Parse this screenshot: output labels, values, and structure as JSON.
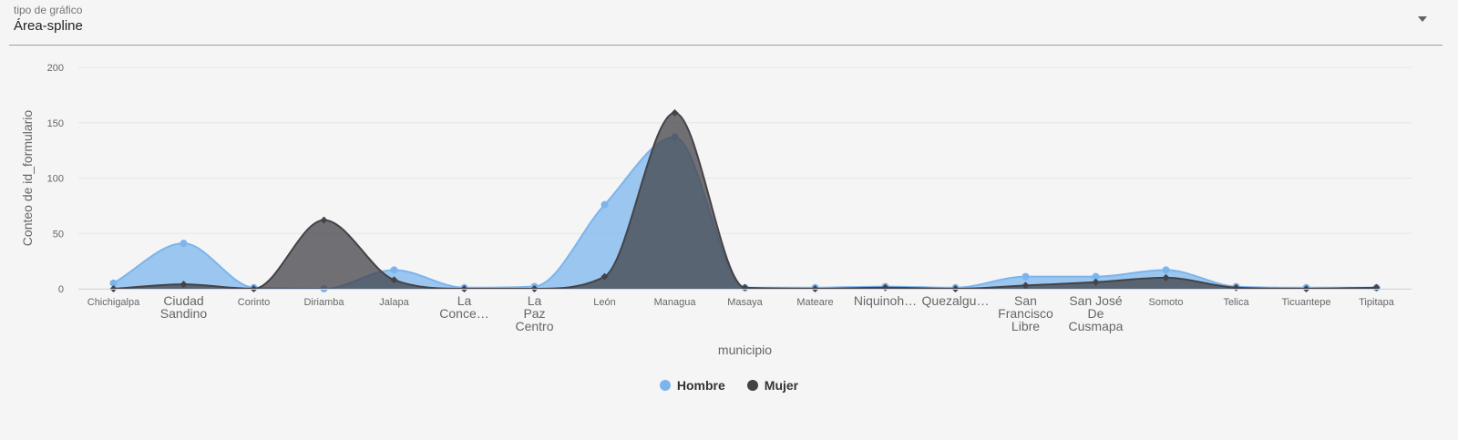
{
  "chart_selector": {
    "label": "tipo de gráfico",
    "value": "Área-spline"
  },
  "chart_data": {
    "type": "area",
    "subtype": "spline",
    "xlabel": "municipio",
    "ylabel": "Conteo de id_formulario",
    "ylim": [
      0,
      200
    ],
    "yticks": [
      0,
      50,
      100,
      150,
      200
    ],
    "grid": true,
    "legend_position": "bottom-center",
    "categories": [
      {
        "short": "Chichigalpa",
        "full": "Chichigalpa"
      },
      {
        "short": "Ciudad Sandino",
        "full": "Ciudad Sandino"
      },
      {
        "short": "Corinto",
        "full": "Corinto"
      },
      {
        "short": "Diriamba",
        "full": "Diriamba"
      },
      {
        "short": "Jalapa",
        "full": "Jalapa"
      },
      {
        "short": "La Conce…",
        "full": "La Conce…"
      },
      {
        "short": "La Paz Centro",
        "full": "La Paz Centro"
      },
      {
        "short": "León",
        "full": "León"
      },
      {
        "short": "Managua",
        "full": "Managua"
      },
      {
        "short": "Masaya",
        "full": "Masaya"
      },
      {
        "short": "Mateare",
        "full": "Mateare"
      },
      {
        "short": "Niquinoh…",
        "full": "Niquinoh…"
      },
      {
        "short": "Quezalgu…",
        "full": "Quezalgu…"
      },
      {
        "short": "San Francisco Libre",
        "full": "San Francisco Libre"
      },
      {
        "short": "San José De Cusmapa",
        "full": "San José De Cusmapa"
      },
      {
        "short": "Somoto",
        "full": "Somoto"
      },
      {
        "short": "Telica",
        "full": "Telica"
      },
      {
        "short": "Ticuantepe",
        "full": "Ticuantepe"
      },
      {
        "short": "Tipitapa",
        "full": "Tipitapa"
      }
    ],
    "series": [
      {
        "name": "Hombre",
        "color": "#7cb5ec",
        "values": [
          5,
          41,
          1,
          0,
          17,
          1,
          2,
          76,
          137,
          1,
          1,
          2,
          1,
          11,
          11,
          17,
          2,
          1,
          1
        ]
      },
      {
        "name": "Mujer",
        "color": "#434348",
        "values": [
          0,
          4,
          0,
          62,
          8,
          0,
          0,
          11,
          159,
          1,
          0,
          1,
          0,
          3,
          6,
          10,
          1,
          0,
          1
        ]
      }
    ]
  }
}
